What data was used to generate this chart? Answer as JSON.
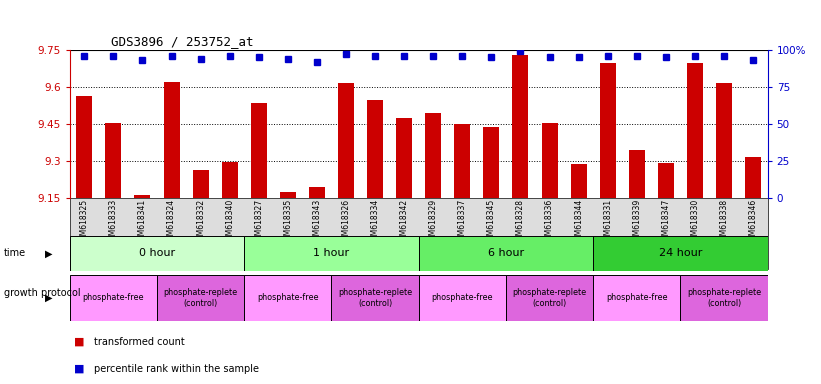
{
  "title": "GDS3896 / 253752_at",
  "samples": [
    "GSM618325",
    "GSM618333",
    "GSM618341",
    "GSM618324",
    "GSM618332",
    "GSM618340",
    "GSM618327",
    "GSM618335",
    "GSM618343",
    "GSM618326",
    "GSM618334",
    "GSM618342",
    "GSM618329",
    "GSM618337",
    "GSM618345",
    "GSM618328",
    "GSM618336",
    "GSM618344",
    "GSM618331",
    "GSM618339",
    "GSM618347",
    "GSM618330",
    "GSM618338",
    "GSM618346"
  ],
  "bar_values": [
    9.565,
    9.455,
    9.163,
    9.62,
    9.262,
    9.297,
    9.535,
    9.175,
    9.193,
    9.615,
    9.545,
    9.475,
    9.495,
    9.448,
    9.437,
    9.73,
    9.455,
    9.285,
    9.695,
    9.345,
    9.293,
    9.695,
    9.615,
    9.315
  ],
  "percentile_values": [
    96,
    96,
    93,
    96,
    94,
    96,
    95,
    94,
    92,
    97,
    96,
    96,
    96,
    96,
    95,
    99,
    95,
    95,
    96,
    96,
    95,
    96,
    96,
    93
  ],
  "ylim_left": [
    9.15,
    9.75
  ],
  "ylim_right": [
    0,
    100
  ],
  "yticks_left": [
    9.15,
    9.3,
    9.45,
    9.6,
    9.75
  ],
  "yticks_right": [
    0,
    25,
    50,
    75,
    100
  ],
  "ytick_labels_right": [
    "0",
    "25",
    "50",
    "75",
    "100%"
  ],
  "bar_color": "#cc0000",
  "percentile_color": "#0000cc",
  "bar_width": 0.55,
  "time_groups": [
    {
      "label": "0 hour",
      "start": 0,
      "end": 6,
      "color": "#ccffcc"
    },
    {
      "label": "1 hour",
      "start": 6,
      "end": 12,
      "color": "#99ff99"
    },
    {
      "label": "6 hour",
      "start": 12,
      "end": 18,
      "color": "#66ee66"
    },
    {
      "label": "24 hour",
      "start": 18,
      "end": 24,
      "color": "#33cc33"
    }
  ],
  "protocol_groups": [
    {
      "label": "phosphate-free",
      "start": 0,
      "end": 3,
      "color": "#ff99ff"
    },
    {
      "label": "phosphate-replete\n(control)",
      "start": 3,
      "end": 6,
      "color": "#dd66dd"
    },
    {
      "label": "phosphate-free",
      "start": 6,
      "end": 9,
      "color": "#ff99ff"
    },
    {
      "label": "phosphate-replete\n(control)",
      "start": 9,
      "end": 12,
      "color": "#dd66dd"
    },
    {
      "label": "phosphate-free",
      "start": 12,
      "end": 15,
      "color": "#ff99ff"
    },
    {
      "label": "phosphate-replete\n(control)",
      "start": 15,
      "end": 18,
      "color": "#dd66dd"
    },
    {
      "label": "phosphate-free",
      "start": 18,
      "end": 21,
      "color": "#ff99ff"
    },
    {
      "label": "phosphate-replete\n(control)",
      "start": 21,
      "end": 24,
      "color": "#dd66dd"
    }
  ],
  "bar_color_red": "#cc0000",
  "pct_color_blue": "#0000cc",
  "xlabel_color": "#cc0000",
  "ylabel_right_color": "#0000cc",
  "title_fontsize": 9,
  "axis_fontsize": 7.5,
  "xlabel_fontsize": 5.5,
  "pct_marker_size": 5
}
